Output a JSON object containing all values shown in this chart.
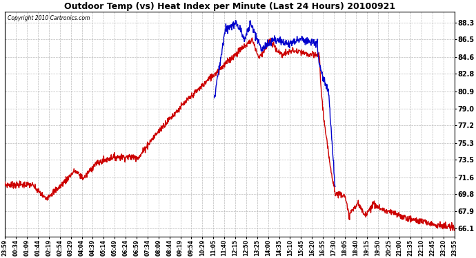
{
  "title": "Outdoor Temp (vs) Heat Index per Minute (Last 24 Hours) 20100921",
  "copyright": "Copyright 2010 Cartronics.com",
  "background_color": "#ffffff",
  "plot_background": "#ffffff",
  "grid_color": "#aaaaaa",
  "yticks": [
    66.1,
    67.9,
    69.8,
    71.6,
    73.5,
    75.3,
    77.2,
    79.0,
    80.9,
    82.8,
    84.6,
    86.5,
    88.3
  ],
  "ylim": [
    65.2,
    89.5
  ],
  "red_color": "#cc0000",
  "blue_color": "#0000cc",
  "xtick_labels": [
    "23:59",
    "00:34",
    "01:09",
    "01:44",
    "02:19",
    "02:54",
    "03:29",
    "04:04",
    "04:39",
    "05:14",
    "05:49",
    "06:24",
    "06:59",
    "07:34",
    "08:09",
    "08:44",
    "09:19",
    "09:54",
    "10:29",
    "11:05",
    "11:40",
    "12:15",
    "12:50",
    "13:25",
    "14:00",
    "14:35",
    "15:10",
    "15:45",
    "16:20",
    "16:55",
    "17:30",
    "18:05",
    "18:40",
    "19:15",
    "19:50",
    "20:25",
    "21:00",
    "21:35",
    "22:10",
    "22:45",
    "23:20",
    "23:55"
  ]
}
